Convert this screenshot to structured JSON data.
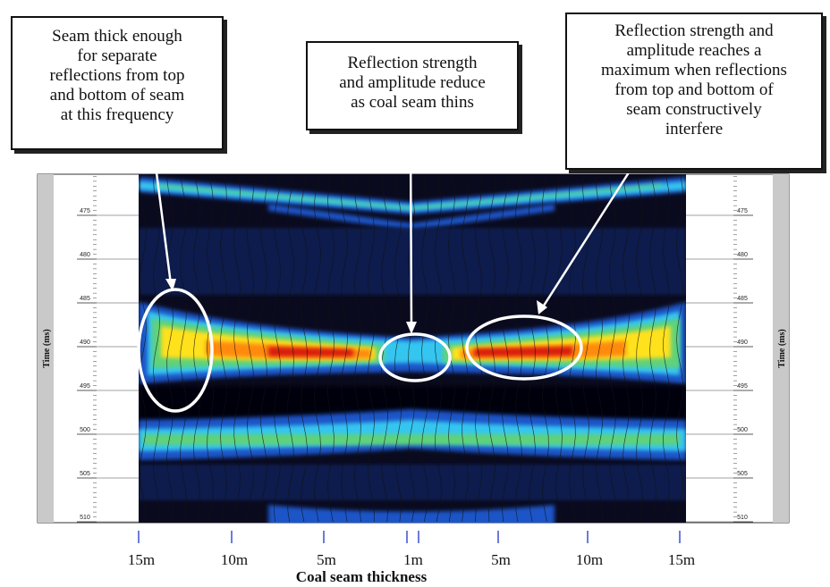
{
  "callouts": {
    "left": "Seam thick enough\nfor separate\nreflections from top\nand bottom of seam\nat this frequency",
    "middle": "Reflection strength\nand amplitude reduce\nas coal seam thins",
    "right": "Reflection strength and\namplitude reaches a\nmaximum when reflections\nfrom top and bottom of\nseam constructively\ninterfere"
  },
  "y_axis": {
    "label": "Time (ms)",
    "ticks": [
      "475",
      "480",
      "485",
      "490",
      "495",
      "500",
      "505",
      "510"
    ]
  },
  "x_axis": {
    "title": "Coal seam thickness",
    "ticks": [
      "15m",
      "10m",
      "5m",
      "1m",
      "5m",
      "10m",
      "15m"
    ]
  },
  "colors": {
    "panel_gray": "#c9c9c9",
    "background": "#0a0a1e",
    "band_outer": "#1b55c8",
    "band_cyan": "#35c6f0",
    "band_green": "#5fd27a",
    "band_yellow": "#ffe11a",
    "band_orange": "#ff8a10",
    "band_red": "#d81a10",
    "annotation": "#ffffff"
  }
}
